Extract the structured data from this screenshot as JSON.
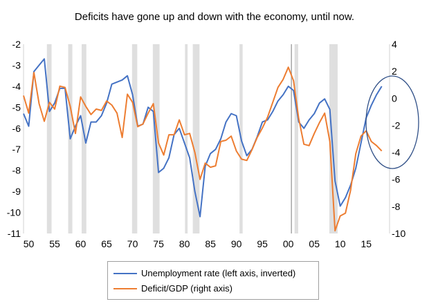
{
  "chart_data": {
    "type": "line",
    "title": "Deficits have gone up and down with the economy, until now.",
    "x_ticks": [
      "50",
      "55",
      "60",
      "65",
      "70",
      "75",
      "80",
      "85",
      "90",
      "95",
      "00",
      "05",
      "10",
      "15"
    ],
    "left_axis": {
      "ticks": [
        "-2",
        "-3",
        "-4",
        "-5",
        "-6",
        "-7",
        "-8",
        "-9",
        "-10",
        "-11"
      ],
      "range": [
        -11,
        -2
      ],
      "inverted_data": true
    },
    "right_axis": {
      "ticks": [
        "4",
        "2",
        "0",
        "-2",
        "-4",
        "-6",
        "-8",
        "-10"
      ],
      "range": [
        -10,
        4
      ]
    },
    "recessions": [
      [
        1953.5,
        1954.4
      ],
      [
        1957.6,
        1958.4
      ],
      [
        1960.2,
        1961.1
      ],
      [
        1969.9,
        1970.9
      ],
      [
        1973.9,
        1975.2
      ],
      [
        1980.1,
        1980.6
      ],
      [
        1981.6,
        1982.9
      ],
      [
        1990.6,
        1991.2
      ],
      [
        2001.2,
        2001.9
      ],
      [
        2007.9,
        2009.5
      ]
    ],
    "series": [
      {
        "name": "Unemployment rate (left axis, inverted)",
        "color": "#4472c4",
        "axis": "left",
        "x": [
          1949,
          1950,
          1951,
          1952,
          1953,
          1954,
          1955,
          1956,
          1957,
          1958,
          1959,
          1960,
          1961,
          1962,
          1963,
          1964,
          1965,
          1966,
          1967,
          1968,
          1969,
          1970,
          1971,
          1972,
          1973,
          1974,
          1975,
          1976,
          1977,
          1978,
          1979,
          1980,
          1981,
          1982,
          1983,
          1984,
          1985,
          1986,
          1987,
          1988,
          1989,
          1990,
          1991,
          1992,
          1993,
          1994,
          1995,
          1996,
          1997,
          1998,
          1999,
          2000,
          2001,
          2002,
          2003,
          2004,
          2005,
          2006,
          2007,
          2008,
          2009,
          2010,
          2011,
          2012,
          2013,
          2014,
          2015,
          2016,
          2017,
          2018
        ],
        "values": [
          -5.3,
          -5.9,
          -3.3,
          -3.0,
          -2.7,
          -5.2,
          -4.8,
          -4.1,
          -4.1,
          -6.5,
          -5.9,
          -5.4,
          -6.7,
          -5.7,
          -5.7,
          -5.4,
          -4.8,
          -3.9,
          -3.8,
          -3.7,
          -3.5,
          -4.4,
          -5.9,
          -5.8,
          -5.0,
          -5.2,
          -8.1,
          -7.9,
          -7.4,
          -6.3,
          -6.0,
          -6.7,
          -7.4,
          -9.0,
          -10.2,
          -7.8,
          -7.2,
          -7.0,
          -6.5,
          -5.7,
          -5.3,
          -5.4,
          -6.6,
          -7.3,
          -7.0,
          -6.4,
          -5.7,
          -5.6,
          -5.2,
          -4.7,
          -4.4,
          -4.0,
          -4.2,
          -5.7,
          -6.0,
          -5.6,
          -5.3,
          -4.8,
          -4.6,
          -5.1,
          -8.5,
          -9.7,
          -9.3,
          -8.7,
          -7.9,
          -6.7,
          -5.5,
          -4.9,
          -4.4,
          -4.0
        ]
      },
      {
        "name": "Deficit/GDP (right axis)",
        "color": "#ed7d31",
        "axis": "right",
        "x": [
          1949,
          1950,
          1951,
          1952,
          1953,
          1954,
          1955,
          1956,
          1957,
          1958,
          1959,
          1960,
          1961,
          1962,
          1963,
          1964,
          1965,
          1966,
          1967,
          1968,
          1969,
          1970,
          1971,
          1972,
          1973,
          1974,
          1975,
          1976,
          1977,
          1978,
          1979,
          1980,
          1981,
          1982,
          1983,
          1984,
          1985,
          1986,
          1987,
          1988,
          1989,
          1990,
          1991,
          1992,
          1993,
          1994,
          1995,
          1996,
          1997,
          1998,
          1999,
          2000,
          2001,
          2002,
          2003,
          2004,
          2005,
          2006,
          2007,
          2008,
          2009,
          2010,
          2011,
          2012,
          2013,
          2014,
          2015,
          2016,
          2017,
          2018
        ],
        "values": [
          0.2,
          -1.1,
          1.9,
          -0.4,
          -1.7,
          -0.3,
          -0.8,
          0.9,
          0.8,
          -0.6,
          -2.6,
          0.1,
          -0.6,
          -1.2,
          -0.8,
          -0.9,
          -0.2,
          -0.5,
          -1.1,
          -2.9,
          0.3,
          -0.3,
          -2.1,
          -1.9,
          -1.1,
          -0.4,
          -3.3,
          -4.2,
          -2.7,
          -2.7,
          -1.6,
          -2.7,
          -2.6,
          -4.0,
          -6.0,
          -4.8,
          -5.1,
          -5.0,
          -3.2,
          -3.1,
          -2.8,
          -3.9,
          -4.5,
          -4.6,
          -3.8,
          -2.9,
          -2.2,
          -1.4,
          -0.3,
          0.8,
          1.4,
          2.3,
          1.3,
          -1.5,
          -3.4,
          -3.5,
          -2.6,
          -1.8,
          -1.1,
          -3.2,
          -9.8,
          -8.7,
          -8.5,
          -6.8,
          -4.1,
          -2.8,
          -2.4,
          -3.2,
          -3.5,
          -3.9
        ]
      }
    ],
    "annotation": {
      "shape": "ellipse",
      "color": "#2f4f87"
    }
  }
}
